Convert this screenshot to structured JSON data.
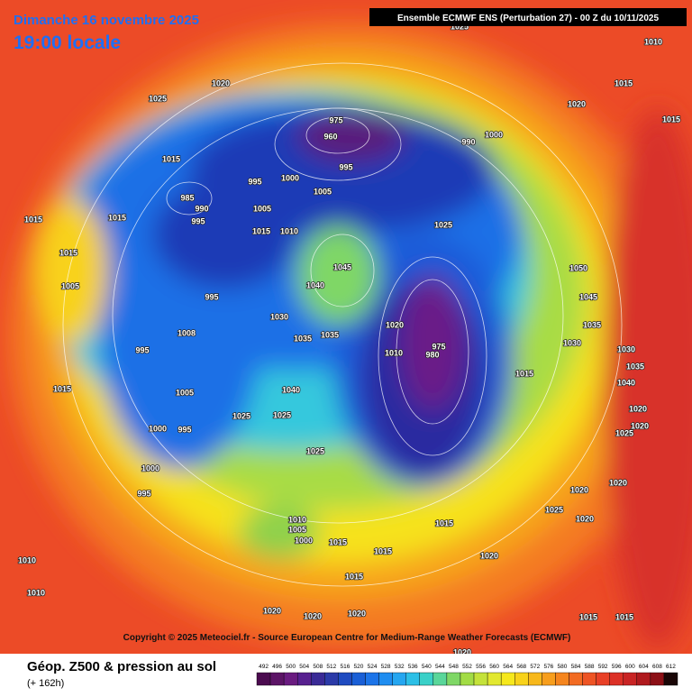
{
  "header": {
    "date": "Dimanche 16 novembre 2025",
    "time": "19:00 locale",
    "banner": "Ensemble ECMWF ENS  (Perturbation 27)  -  00 Z du 10/11/2025"
  },
  "copyright": "Copyright © 2025 Meteociel.fr - Source European Centre for Medium-Range Weather Forecasts (ECMWF)",
  "legend": {
    "title": "Géop. Z500 & pression au sol",
    "lead": "(+ 162h)",
    "scale": {
      "values": [
        492,
        496,
        500,
        504,
        508,
        512,
        516,
        520,
        524,
        528,
        532,
        536,
        540,
        544,
        548,
        552,
        556,
        560,
        564,
        568,
        572,
        576,
        580,
        584,
        588,
        592,
        596,
        600,
        604,
        608,
        612
      ],
      "colors": [
        "#4b0b4f",
        "#5c1466",
        "#6a1b80",
        "#57208f",
        "#3a2a96",
        "#2b3aa8",
        "#1f4bc0",
        "#1a5fd6",
        "#1c74e8",
        "#1f8df0",
        "#25a6f0",
        "#2cbfe6",
        "#3ad0c8",
        "#5ad69a",
        "#7fd766",
        "#a2dc45",
        "#c4e23a",
        "#e2e830",
        "#f6e81c",
        "#f8d21a",
        "#f7b81b",
        "#f79e1d",
        "#f5851e",
        "#f26b22",
        "#ee5424",
        "#e84026",
        "#dc3026",
        "#c92424",
        "#b01a1e",
        "#8c1016",
        "#1a0606"
      ]
    }
  },
  "isobar_labels": [
    "1025",
    "1020",
    "1025",
    "1010",
    "1015",
    "1020",
    "1015",
    "975",
    "960",
    "990",
    "1000",
    "1015",
    "995",
    "985",
    "990",
    "995",
    "995",
    "1000",
    "1005",
    "1005",
    "1015",
    "1010",
    "1025",
    "1015",
    "1015",
    "1015",
    "1005",
    "995",
    "1045",
    "1040",
    "1008",
    "995",
    "1030",
    "1035",
    "1035",
    "1020",
    "975",
    "980",
    "1010",
    "1015",
    "1040",
    "1005",
    "1015",
    "1025",
    "1025",
    "995",
    "1000",
    "1025",
    "1000",
    "995",
    "1010",
    "1005",
    "1000",
    "1015",
    "1015",
    "1020",
    "1025",
    "1020",
    "1020",
    "1020",
    "1025",
    "1020",
    "1015",
    "1015",
    "1020",
    "1020",
    "1020",
    "1010",
    "1010",
    "1015",
    "1015",
    "1020",
    "1050",
    "1045",
    "1035",
    "1030",
    "1030",
    "1035",
    "1040",
    "1020"
  ]
}
